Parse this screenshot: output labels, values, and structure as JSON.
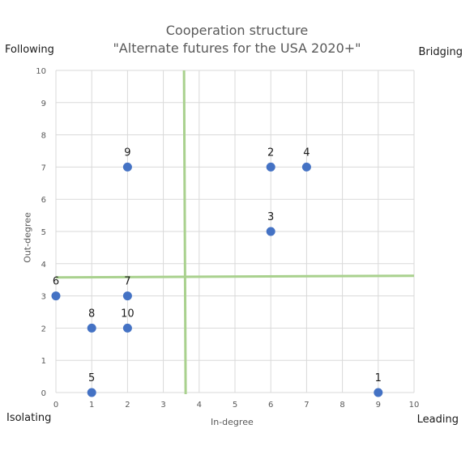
{
  "chart_data": {
    "type": "scatter",
    "title": "Cooperation structure",
    "subtitle": "\"Alternate futures for the USA 2020+\"",
    "xlabel": "In-degree",
    "ylabel": "Out-degree",
    "xlim": [
      0,
      10
    ],
    "ylim": [
      0,
      10
    ],
    "xticks": [
      "0",
      "1",
      "2",
      "3",
      "4",
      "5",
      "6",
      "7",
      "8",
      "9",
      "10"
    ],
    "yticks": [
      "0",
      "1",
      "2",
      "3",
      "4",
      "5",
      "6",
      "7",
      "8",
      "9",
      "10"
    ],
    "grid": true,
    "points": [
      {
        "label": "1",
        "x": 9,
        "y": 0
      },
      {
        "label": "2",
        "x": 6,
        "y": 7
      },
      {
        "label": "3",
        "x": 6,
        "y": 5
      },
      {
        "label": "4",
        "x": 7,
        "y": 7
      },
      {
        "label": "5",
        "x": 1,
        "y": 0
      },
      {
        "label": "6",
        "x": 0,
        "y": 3
      },
      {
        "label": "7",
        "x": 2,
        "y": 3
      },
      {
        "label": "8",
        "x": 1,
        "y": 2
      },
      {
        "label": "9",
        "x": 2,
        "y": 7
      },
      {
        "label": "10",
        "x": 2,
        "y": 2
      }
    ],
    "quadrant_lines": {
      "x": 3.6,
      "y": 3.6
    },
    "quadrant_labels": {
      "top_left": "Following",
      "top_right": "Bridging",
      "bottom_left": "Isolating",
      "bottom_right": "Leading"
    },
    "marker_color": "#4472C4",
    "quadrant_line_color": "#A9D18E"
  }
}
